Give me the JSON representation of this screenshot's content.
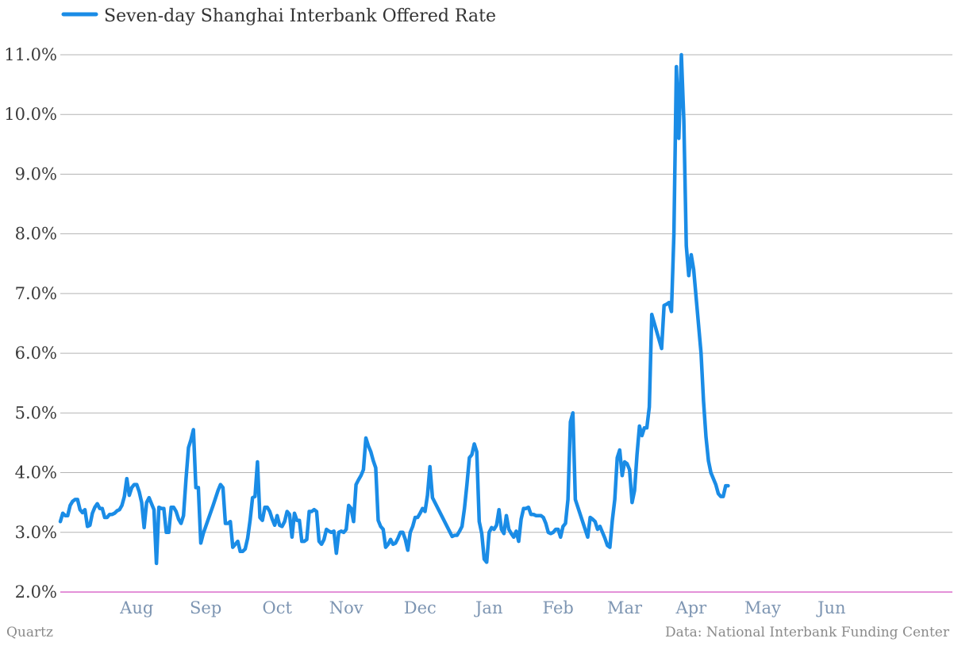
{
  "colors": {
    "series": "#1a8ce6",
    "grid": "#b4b4b4",
    "baseline": "#d44fc0",
    "month": "#7d95b2"
  },
  "footer": {
    "source_left": "Quartz",
    "source_right": "Data: National Interbank Funding Center"
  },
  "chart_data": {
    "type": "line",
    "title": "",
    "xlabel": "",
    "ylabel": "",
    "ylim": [
      2.0,
      11.0
    ],
    "xlim": [
      0,
      362
    ],
    "y_ticks": [
      2.0,
      3.0,
      4.0,
      5.0,
      6.0,
      7.0,
      8.0,
      9.0,
      10.0,
      11.0
    ],
    "y_tick_labels": [
      "2.0%",
      "3.0%",
      "4.0%",
      "5.0%",
      "6.0%",
      "7.0%",
      "8.0%",
      "9.0%",
      "10.0%",
      "11.0%"
    ],
    "month_ticks": [
      {
        "label": "Aug",
        "x": 31
      },
      {
        "label": "Sep",
        "x": 59
      },
      {
        "label": "Oct",
        "x": 88
      },
      {
        "label": "Nov",
        "x": 116
      },
      {
        "label": "Dec",
        "x": 146
      },
      {
        "label": "Jan",
        "x": 174
      },
      {
        "label": "Feb",
        "x": 202
      },
      {
        "label": "Mar",
        "x": 229
      },
      {
        "label": "Apr",
        "x": 256
      },
      {
        "label": "May",
        "x": 285
      },
      {
        "label": "Jun",
        "x": 313
      }
    ],
    "legend": {
      "position": "top-left"
    },
    "grid": true,
    "series": [
      {
        "name": "Seven-day Shanghai Interbank Offered Rate",
        "points": [
          [
            0,
            3.18
          ],
          [
            1,
            3.32
          ],
          [
            2,
            3.28
          ],
          [
            3,
            3.28
          ],
          [
            4,
            3.45
          ],
          [
            5,
            3.52
          ],
          [
            6,
            3.55
          ],
          [
            7,
            3.55
          ],
          [
            8,
            3.38
          ],
          [
            9,
            3.33
          ],
          [
            10,
            3.38
          ],
          [
            11,
            3.1
          ],
          [
            12,
            3.12
          ],
          [
            13,
            3.32
          ],
          [
            14,
            3.42
          ],
          [
            15,
            3.48
          ],
          [
            16,
            3.4
          ],
          [
            17,
            3.4
          ],
          [
            18,
            3.25
          ],
          [
            19,
            3.25
          ],
          [
            20,
            3.3
          ],
          [
            21,
            3.3
          ],
          [
            22,
            3.32
          ],
          [
            23,
            3.36
          ],
          [
            24,
            3.38
          ],
          [
            25,
            3.45
          ],
          [
            26,
            3.6
          ],
          [
            27,
            3.9
          ],
          [
            28,
            3.62
          ],
          [
            29,
            3.75
          ],
          [
            30,
            3.8
          ],
          [
            31,
            3.8
          ],
          [
            32,
            3.68
          ],
          [
            33,
            3.5
          ],
          [
            34,
            3.08
          ],
          [
            35,
            3.5
          ],
          [
            36,
            3.58
          ],
          [
            37,
            3.48
          ],
          [
            38,
            3.38
          ],
          [
            39,
            2.48
          ],
          [
            40,
            3.42
          ],
          [
            41,
            3.4
          ],
          [
            42,
            3.4
          ],
          [
            43,
            3.0
          ],
          [
            44,
            3.0
          ],
          [
            45,
            3.42
          ],
          [
            46,
            3.42
          ],
          [
            47,
            3.35
          ],
          [
            48,
            3.22
          ],
          [
            49,
            3.15
          ],
          [
            50,
            3.28
          ],
          [
            51,
            3.9
          ],
          [
            52,
            4.42
          ],
          [
            53,
            4.55
          ],
          [
            54,
            4.72
          ],
          [
            55,
            3.75
          ],
          [
            56,
            3.75
          ],
          [
            57,
            2.82
          ],
          [
            58,
            2.98
          ],
          [
            62,
            3.45
          ],
          [
            64,
            3.7
          ],
          [
            65,
            3.8
          ],
          [
            66,
            3.75
          ],
          [
            67,
            3.15
          ],
          [
            68,
            3.15
          ],
          [
            69,
            3.18
          ],
          [
            70,
            2.75
          ],
          [
            71,
            2.8
          ],
          [
            72,
            2.85
          ],
          [
            73,
            2.68
          ],
          [
            74,
            2.68
          ],
          [
            75,
            2.72
          ],
          [
            76,
            2.9
          ],
          [
            77,
            3.2
          ],
          [
            78,
            3.58
          ],
          [
            79,
            3.6
          ],
          [
            80,
            4.18
          ],
          [
            81,
            3.25
          ],
          [
            82,
            3.2
          ],
          [
            83,
            3.42
          ],
          [
            84,
            3.42
          ],
          [
            85,
            3.35
          ],
          [
            86,
            3.22
          ],
          [
            87,
            3.12
          ],
          [
            88,
            3.28
          ],
          [
            89,
            3.12
          ],
          [
            90,
            3.1
          ],
          [
            91,
            3.18
          ],
          [
            92,
            3.35
          ],
          [
            93,
            3.3
          ],
          [
            94,
            2.92
          ],
          [
            95,
            3.32
          ],
          [
            96,
            3.2
          ],
          [
            97,
            3.2
          ],
          [
            98,
            2.85
          ],
          [
            99,
            2.85
          ],
          [
            100,
            2.88
          ],
          [
            101,
            3.35
          ],
          [
            102,
            3.35
          ],
          [
            103,
            3.38
          ],
          [
            104,
            3.35
          ],
          [
            105,
            2.85
          ],
          [
            106,
            2.8
          ],
          [
            107,
            2.88
          ],
          [
            108,
            3.05
          ],
          [
            109,
            3.02
          ],
          [
            110,
            3.0
          ],
          [
            111,
            3.02
          ],
          [
            112,
            2.65
          ],
          [
            113,
            3.0
          ],
          [
            114,
            3.02
          ],
          [
            115,
            3.0
          ],
          [
            116,
            3.05
          ],
          [
            117,
            3.45
          ],
          [
            118,
            3.4
          ],
          [
            119,
            3.18
          ],
          [
            120,
            3.8
          ],
          [
            121,
            3.88
          ],
          [
            122,
            3.95
          ],
          [
            123,
            4.05
          ],
          [
            124,
            4.58
          ],
          [
            125,
            4.45
          ],
          [
            126,
            4.35
          ],
          [
            127,
            4.2
          ],
          [
            128,
            4.08
          ],
          [
            129,
            3.2
          ],
          [
            130,
            3.1
          ],
          [
            131,
            3.05
          ],
          [
            132,
            2.75
          ],
          [
            133,
            2.8
          ],
          [
            134,
            2.88
          ],
          [
            135,
            2.8
          ],
          [
            136,
            2.82
          ],
          [
            137,
            2.9
          ],
          [
            138,
            3.0
          ],
          [
            139,
            3.0
          ],
          [
            140,
            2.88
          ],
          [
            141,
            2.7
          ],
          [
            142,
            3.0
          ],
          [
            143,
            3.1
          ],
          [
            144,
            3.25
          ],
          [
            145,
            3.25
          ],
          [
            146,
            3.32
          ],
          [
            147,
            3.4
          ],
          [
            148,
            3.35
          ],
          [
            149,
            3.62
          ],
          [
            150,
            4.1
          ],
          [
            151,
            3.58
          ],
          [
            159,
            2.93
          ],
          [
            160,
            2.95
          ],
          [
            161,
            2.95
          ],
          [
            162,
            3.02
          ],
          [
            163,
            3.1
          ],
          [
            164,
            3.4
          ],
          [
            165,
            3.8
          ],
          [
            166,
            4.25
          ],
          [
            167,
            4.3
          ],
          [
            168,
            4.48
          ],
          [
            169,
            4.35
          ],
          [
            170,
            3.18
          ],
          [
            171,
            2.98
          ],
          [
            172,
            2.55
          ],
          [
            173,
            2.5
          ],
          [
            174,
            3.0
          ],
          [
            175,
            3.08
          ],
          [
            176,
            3.05
          ],
          [
            177,
            3.12
          ],
          [
            178,
            3.38
          ],
          [
            179,
            3.05
          ],
          [
            180,
            2.98
          ],
          [
            181,
            3.28
          ],
          [
            182,
            3.05
          ],
          [
            183,
            2.98
          ],
          [
            184,
            2.92
          ],
          [
            185,
            3.02
          ],
          [
            186,
            2.85
          ],
          [
            187,
            3.22
          ],
          [
            188,
            3.4
          ],
          [
            189,
            3.4
          ],
          [
            190,
            3.42
          ],
          [
            191,
            3.3
          ],
          [
            192,
            3.3
          ],
          [
            193,
            3.28
          ],
          [
            194,
            3.28
          ],
          [
            195,
            3.28
          ],
          [
            196,
            3.25
          ],
          [
            197,
            3.15
          ],
          [
            198,
            3.0
          ],
          [
            199,
            2.98
          ],
          [
            200,
            3.0
          ],
          [
            201,
            3.05
          ],
          [
            202,
            3.05
          ],
          [
            203,
            2.92
          ],
          [
            204,
            3.1
          ],
          [
            205,
            3.15
          ],
          [
            206,
            3.55
          ],
          [
            207,
            4.85
          ],
          [
            208,
            5.0
          ],
          [
            209,
            3.55
          ],
          [
            214,
            2.92
          ],
          [
            215,
            3.25
          ],
          [
            216,
            3.22
          ],
          [
            217,
            3.18
          ],
          [
            218,
            3.05
          ],
          [
            219,
            3.1
          ],
          [
            220,
            3.0
          ],
          [
            221,
            2.9
          ],
          [
            222,
            2.78
          ],
          [
            223,
            2.75
          ],
          [
            224,
            3.2
          ],
          [
            225,
            3.55
          ],
          [
            226,
            4.25
          ],
          [
            227,
            4.38
          ],
          [
            228,
            3.95
          ],
          [
            229,
            4.18
          ],
          [
            230,
            4.15
          ],
          [
            231,
            4.05
          ],
          [
            232,
            3.5
          ],
          [
            233,
            3.7
          ],
          [
            234,
            4.3
          ],
          [
            235,
            4.78
          ],
          [
            236,
            4.62
          ],
          [
            237,
            4.75
          ],
          [
            238,
            4.75
          ],
          [
            239,
            5.1
          ],
          [
            240,
            6.65
          ],
          [
            244,
            6.08
          ],
          [
            245,
            6.8
          ],
          [
            246,
            6.82
          ],
          [
            247,
            6.85
          ],
          [
            248,
            6.7
          ],
          [
            249,
            8.0
          ],
          [
            250,
            10.8
          ],
          [
            251,
            9.6
          ],
          [
            252,
            11.0
          ],
          [
            253,
            9.9
          ],
          [
            254,
            7.8
          ],
          [
            255,
            7.3
          ],
          [
            256,
            7.65
          ],
          [
            257,
            7.4
          ],
          [
            260,
            6.0
          ],
          [
            261,
            5.2
          ],
          [
            262,
            4.6
          ],
          [
            263,
            4.2
          ],
          [
            264,
            4.0
          ],
          [
            265,
            3.9
          ],
          [
            266,
            3.8
          ],
          [
            267,
            3.65
          ],
          [
            268,
            3.6
          ],
          [
            269,
            3.6
          ],
          [
            270,
            3.78
          ],
          [
            271,
            3.78
          ]
        ]
      }
    ]
  }
}
